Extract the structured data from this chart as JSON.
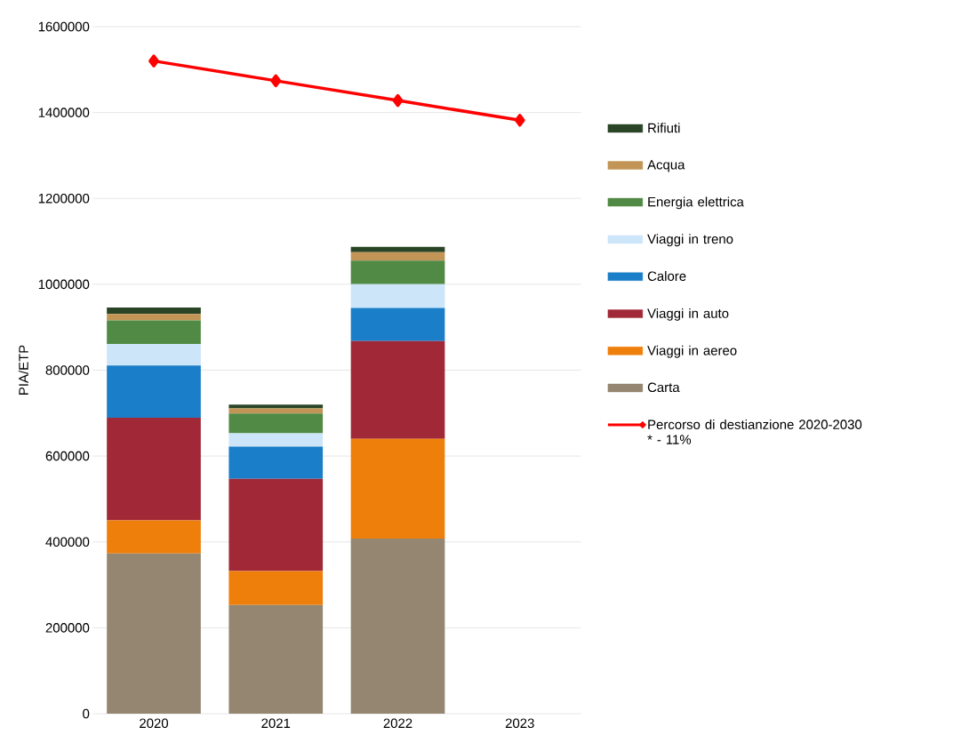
{
  "chart_data": {
    "type": "bar",
    "stacked": true,
    "ylabel": "PIA/ETP",
    "categories": [
      "2020",
      "2021",
      "2022",
      "2023"
    ],
    "series": [
      {
        "name": "Carta",
        "color": "#948671",
        "values": [
          373000,
          253000,
          408000,
          null
        ]
      },
      {
        "name": "Viaggi in aereo",
        "color": "#ef7f0b",
        "values": [
          77000,
          79000,
          232000,
          null
        ]
      },
      {
        "name": "Viaggi in auto",
        "color": "#a12937",
        "values": [
          239000,
          215000,
          228000,
          null
        ]
      },
      {
        "name": "Calore",
        "color": "#1b7ec8",
        "values": [
          122000,
          75000,
          77000,
          null
        ]
      },
      {
        "name": "Viaggi in treno",
        "color": "#cce5f8",
        "values": [
          50000,
          31000,
          55000,
          null
        ]
      },
      {
        "name": "Energia elettrica",
        "color": "#518a44",
        "values": [
          55000,
          46000,
          55000,
          null
        ]
      },
      {
        "name": "Acqua",
        "color": "#c29556",
        "values": [
          15000,
          12000,
          20000,
          null
        ]
      },
      {
        "name": "Rifiuti",
        "color": "#2a4526",
        "values": [
          15000,
          9000,
          12000,
          null
        ]
      },
      {
        "name": "Percorso di destianzione 2020-2030 * - 11%",
        "type": "line",
        "color": "#ff0000",
        "marker": "diamond",
        "line_style": "solid",
        "values": [
          1520000,
          1474000,
          1428000,
          1382000
        ]
      }
    ],
    "ylim": [
      0,
      1600000
    ],
    "yticks": [
      0,
      200000,
      400000,
      600000,
      800000,
      1000000,
      1200000,
      1400000,
      1600000
    ],
    "grid": "y",
    "legend": "right"
  }
}
